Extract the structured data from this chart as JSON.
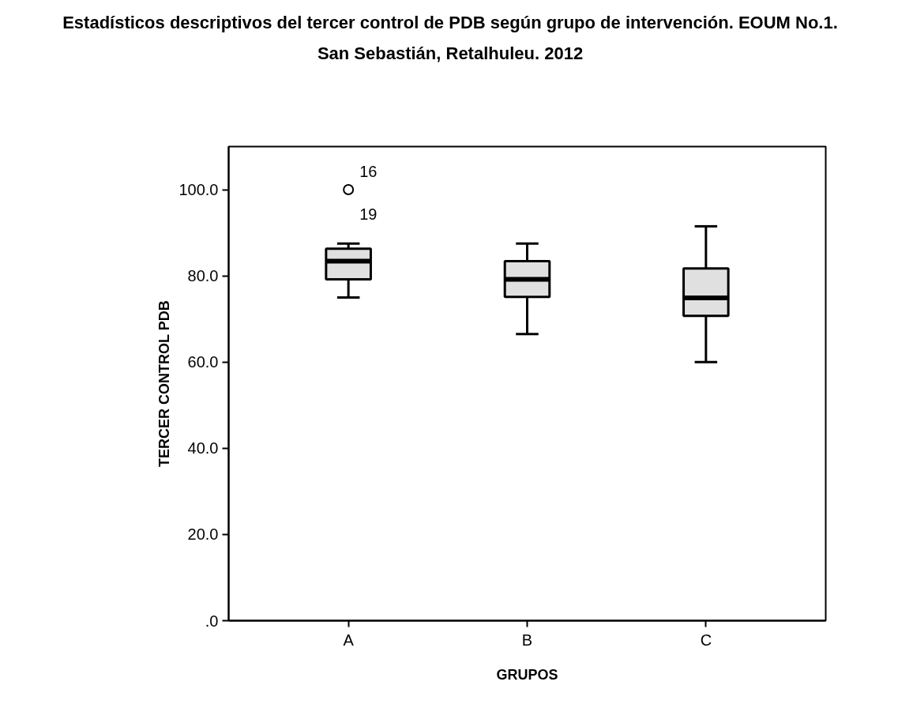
{
  "chart_data": {
    "type": "box",
    "title": "Estadísticos descriptivos del tercer control de PDB según grupo de intervención. EOUM No.1. San Sebastián, Retalhuleu. 2012",
    "xlabel": "GRUPOS",
    "ylabel": "TERCER CONTROL PDB",
    "categories": [
      "A",
      "B",
      "C"
    ],
    "series": [
      {
        "color": "#e0e0e0",
        "boxes": [
          {
            "low": 75.0,
            "q1": 79.2,
            "median": 83.4,
            "q3": 86.3,
            "high": 87.5,
            "outliers": [
              100
            ]
          },
          {
            "low": 66.5,
            "q1": 75.1,
            "median": 79.2,
            "q3": 83.4,
            "high": 87.5
          },
          {
            "low": 60.0,
            "q1": 70.7,
            "median": 74.9,
            "q3": 81.7,
            "high": 91.5
          }
        ]
      }
    ],
    "ylim": [
      0,
      110
    ],
    "yticks": [
      {
        "value": 0,
        "label": ".0"
      },
      {
        "value": 20,
        "label": "20.0"
      },
      {
        "value": 40,
        "label": "40.0"
      },
      {
        "value": 60,
        "label": "60.0"
      },
      {
        "value": 80,
        "label": "80.0"
      },
      {
        "value": 100,
        "label": "100.0"
      }
    ],
    "grid": false,
    "annotations": [
      "16",
      "19"
    ]
  }
}
